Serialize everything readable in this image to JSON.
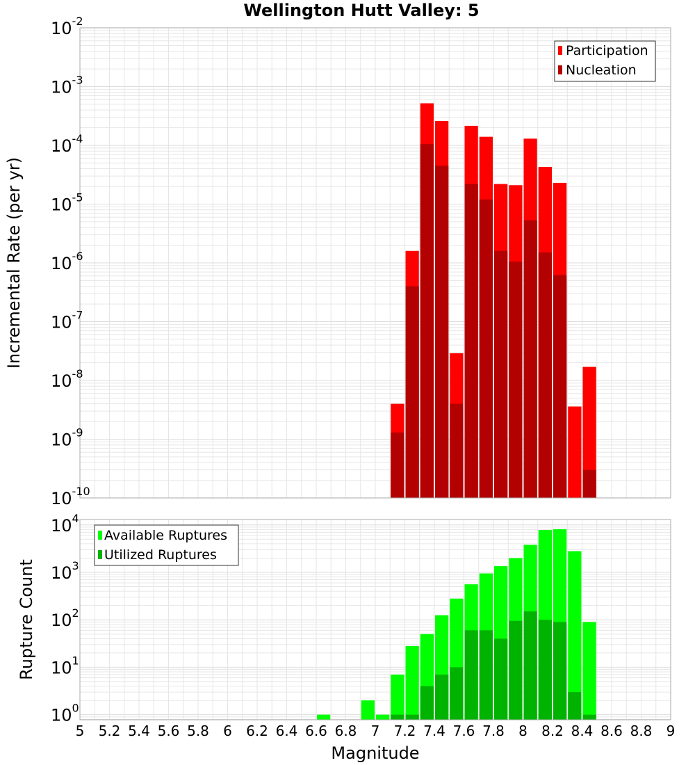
{
  "colors": {
    "participation": "#ff0000",
    "nucleation": "#b30000",
    "available": "#00ff00",
    "utilized": "#00b300",
    "grid": "#e6e6e6",
    "frame": "#aaaaaa"
  },
  "chart_data": [
    {
      "type": "bar",
      "title": "Wellington Hutt Valley: 5",
      "xlabel": "",
      "ylabel": "Incremental Rate (per yr)",
      "yscale": "log",
      "xlim": [
        5,
        9
      ],
      "ylim": [
        1e-10,
        0.01
      ],
      "grid": true,
      "legend_position": "top-right",
      "x": [
        7.15,
        7.25,
        7.35,
        7.45,
        7.55,
        7.65,
        7.75,
        7.85,
        7.95,
        8.05,
        8.15,
        8.25,
        8.35,
        8.45
      ],
      "series": [
        {
          "name": "Participation",
          "values": [
            4e-09,
            1.6e-06,
            0.00052,
            0.00026,
            2.9e-08,
            0.000215,
            0.00014,
            2.2e-05,
            2.1e-05,
            0.00013,
            4.3e-05,
            2.3e-05,
            3.6e-09,
            1.7e-08
          ]
        },
        {
          "name": "Nucleation",
          "values": [
            1.3e-09,
            4e-07,
            0.000105,
            4.5e-05,
            4e-09,
            2.2e-05,
            1.2e-05,
            1.6e-06,
            1.05e-06,
            5.3e-06,
            1.5e-06,
            6.2e-07,
            null,
            3e-10
          ]
        }
      ]
    },
    {
      "type": "bar",
      "title": "",
      "xlabel": "Magnitude",
      "ylabel": "Rupture Count",
      "yscale": "log",
      "xlim": [
        5,
        9
      ],
      "ylim": [
        0.78,
        13000
      ],
      "grid": true,
      "legend_position": "top-left",
      "x": [
        6.65,
        6.95,
        7.05,
        7.15,
        7.25,
        7.35,
        7.45,
        7.55,
        7.65,
        7.75,
        7.85,
        7.95,
        8.05,
        8.15,
        8.25,
        8.35,
        8.45
      ],
      "series": [
        {
          "name": "Available Ruptures",
          "values": [
            1,
            2,
            1,
            7,
            28,
            50,
            125,
            280,
            560,
            950,
            1350,
            2000,
            3800,
            7800,
            8100,
            2800,
            90
          ]
        },
        {
          "name": "Utilized Ruptures",
          "values": [
            null,
            null,
            null,
            1,
            1,
            4,
            7,
            10,
            60,
            60,
            40,
            95,
            150,
            100,
            90,
            3,
            1
          ]
        }
      ]
    }
  ],
  "axes": {
    "top_y_ticks": [
      {
        "base": "10",
        "exp": "-2"
      },
      {
        "base": "10",
        "exp": "-3"
      },
      {
        "base": "10",
        "exp": "-4"
      },
      {
        "base": "10",
        "exp": "-5"
      },
      {
        "base": "10",
        "exp": "-6"
      },
      {
        "base": "10",
        "exp": "-7"
      },
      {
        "base": "10",
        "exp": "-8"
      },
      {
        "base": "10",
        "exp": "-9"
      },
      {
        "base": "10",
        "exp": "-10"
      }
    ],
    "bottom_y_ticks": [
      {
        "base": "10",
        "exp": "4"
      },
      {
        "base": "10",
        "exp": "3"
      },
      {
        "base": "10",
        "exp": "2"
      },
      {
        "base": "10",
        "exp": "1"
      },
      {
        "base": "10",
        "exp": "0"
      }
    ],
    "x_ticks": [
      "5",
      "5.2",
      "5.4",
      "5.6",
      "5.8",
      "6",
      "6.2",
      "6.4",
      "6.6",
      "6.8",
      "7",
      "7.2",
      "7.4",
      "7.6",
      "7.8",
      "8",
      "8.2",
      "8.4",
      "8.6",
      "8.8",
      "9"
    ]
  }
}
